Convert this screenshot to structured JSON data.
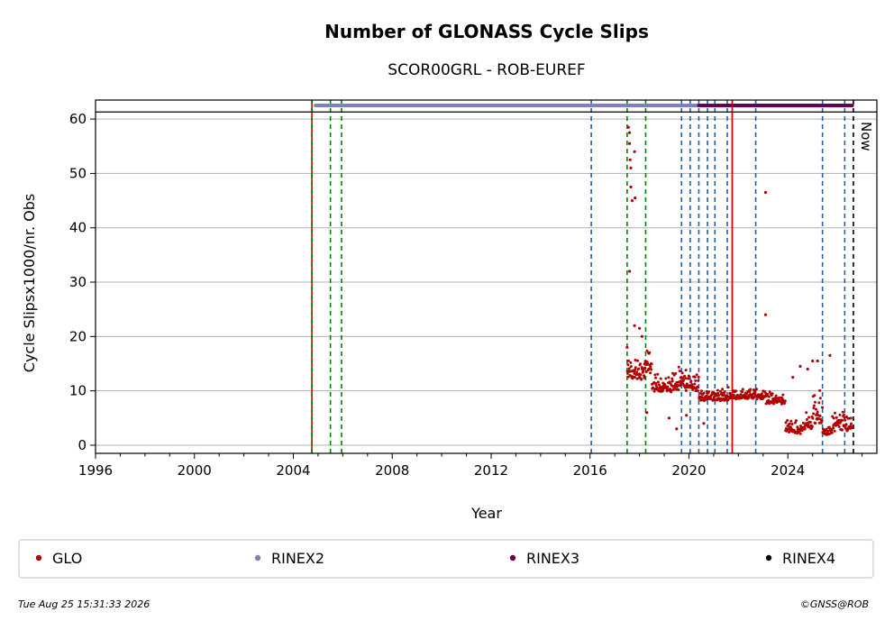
{
  "chart_data": {
    "type": "scatter",
    "title": "Number of GLONASS Cycle Slips",
    "subtitle": "SCOR00GRL - ROB-EUREF",
    "xlabel": "Year",
    "ylabel": "Cycle Slipsx1000/nr. Obs",
    "xlim": [
      1996,
      2027.6
    ],
    "ylim": [
      -1.5,
      63.5
    ],
    "x_ticks": [
      1996,
      2000,
      2004,
      2008,
      2012,
      2016,
      2020,
      2024
    ],
    "y_ticks": [
      0,
      10,
      20,
      30,
      40,
      50,
      60
    ],
    "grid": "horizontal",
    "legend_placement": "bottom",
    "now_label": "Now",
    "now_x": 2026.65,
    "colors": {
      "GLO": "#b30000",
      "RINEX2": "#7f7fbf",
      "RINEX3": "#66004c",
      "RINEX4": "#0d0015",
      "blue_dash": "#1f5fa8",
      "green_dash": "#008000",
      "red_line": "#e00000",
      "grid": "#b0b0b0"
    },
    "series": [
      {
        "name": "GLO",
        "color": "#b30000",
        "segments": [
          {
            "x0": 2017.5,
            "x1": 2018.2,
            "ylow": 11,
            "yhigh": 17
          },
          {
            "x0": 2018.2,
            "x1": 2018.5,
            "ylow": 12,
            "yhigh": 19
          },
          {
            "x0": 2018.5,
            "x1": 2019.3,
            "ylow": 9,
            "yhigh": 14
          },
          {
            "x0": 2019.3,
            "x1": 2020.4,
            "ylow": 9,
            "yhigh": 15
          },
          {
            "x0": 2020.4,
            "x1": 2021.6,
            "ylow": 7.5,
            "yhigh": 11
          },
          {
            "x0": 2021.6,
            "x1": 2023.1,
            "ylow": 8,
            "yhigh": 11
          },
          {
            "x0": 2023.1,
            "x1": 2023.9,
            "ylow": 7,
            "yhigh": 10.5
          },
          {
            "x0": 2023.9,
            "x1": 2024.6,
            "ylow": 1.5,
            "yhigh": 5
          },
          {
            "x0": 2024.6,
            "x1": 2025.0,
            "ylow": 2,
            "yhigh": 7
          },
          {
            "x0": 2025.0,
            "x1": 2025.4,
            "ylow": 2,
            "yhigh": 11
          },
          {
            "x0": 2025.4,
            "x1": 2025.8,
            "ylow": 1.5,
            "yhigh": 4
          },
          {
            "x0": 2025.8,
            "x1": 2026.6,
            "ylow": 1.5,
            "yhigh": 7
          }
        ],
        "outliers": [
          [
            2017.55,
            58.5
          ],
          [
            2017.6,
            57.5
          ],
          [
            2017.6,
            55.5
          ],
          [
            2017.62,
            52.5
          ],
          [
            2017.65,
            51
          ],
          [
            2017.65,
            47.5
          ],
          [
            2017.7,
            45
          ],
          [
            2017.8,
            54
          ],
          [
            2017.82,
            45.5
          ],
          [
            2017.6,
            32
          ],
          [
            2017.5,
            18
          ],
          [
            2017.8,
            22
          ],
          [
            2018.0,
            21.5
          ],
          [
            2018.1,
            20
          ],
          [
            2018.3,
            6
          ],
          [
            2019.2,
            5
          ],
          [
            2019.5,
            3
          ],
          [
            2019.9,
            5.5
          ],
          [
            2020.6,
            4
          ],
          [
            2023.1,
            46.5
          ],
          [
            2023.1,
            24
          ],
          [
            2024.2,
            12.5
          ],
          [
            2024.8,
            14
          ],
          [
            2025.0,
            15.5
          ],
          [
            2025.2,
            15.5
          ],
          [
            2025.7,
            16.5
          ],
          [
            2024.5,
            14.5
          ]
        ]
      }
    ],
    "format_bars": [
      {
        "name": "RINEX2",
        "color": "#7f7fbf",
        "x0": 2004.9,
        "x1": 2020.5,
        "y": 62.5
      },
      {
        "name": "RINEX3",
        "color": "#66004c",
        "x0": 2020.4,
        "x1": 2026.6,
        "y": 62.5
      }
    ],
    "vlines_blue": [
      2016.05,
      2019.7,
      2020.05,
      2020.4,
      2020.75,
      2021.05,
      2021.55,
      2022.7,
      2025.4,
      2026.3
    ],
    "vlines_green": [
      2017.5,
      2018.25,
      2005.5,
      2005.95
    ],
    "vline_red_green": 2004.75,
    "vline_red_solid": 2021.75,
    "hline_y": 61.3,
    "legend": [
      "GLO",
      "RINEX2",
      "RINEX3",
      "RINEX4"
    ]
  },
  "footer": {
    "timestamp": "Tue Aug 25 15:31:33 2026",
    "copyright": "©GNSS@ROB"
  }
}
